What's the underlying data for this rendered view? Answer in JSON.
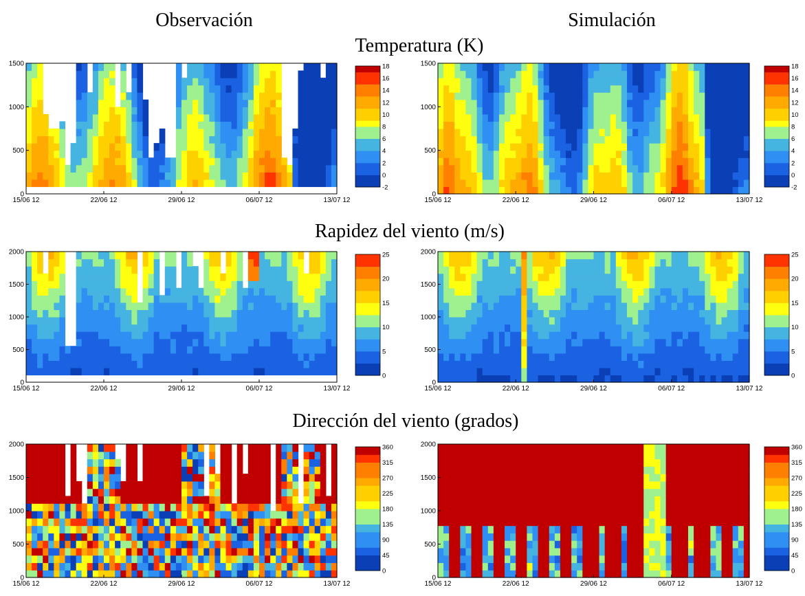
{
  "page": {
    "header_top": "",
    "col_left": "Observación",
    "col_right": "Simulación"
  },
  "rows": [
    {
      "title": "Temperatura (K)"
    },
    {
      "title": "Rapidez del viento (m/s)"
    },
    {
      "title": "Dirección del viento (grados)"
    }
  ],
  "colormap": [
    "#0a3fb5",
    "#1b62e3",
    "#2f8ff2",
    "#45b4e0",
    "#9ff08e",
    "#ffff10",
    "#ffd000",
    "#ffaa00",
    "#ff7f00",
    "#ff3300",
    "#c00000"
  ],
  "chart_data": [
    {
      "type": "heatmap",
      "name": "obs-temperature",
      "row": 0,
      "panel": "left",
      "xlabels": [
        "15/06 12",
        "22/06 12",
        "29/06 12",
        "06/07 12",
        "13/07 12"
      ],
      "xlim": [
        0,
        28
      ],
      "ylim": [
        0,
        1500
      ],
      "yticks": [
        0,
        500,
        1000,
        1500
      ],
      "colorbar_ticks": [
        -2,
        0,
        2,
        4,
        6,
        8,
        10,
        12,
        14,
        16,
        18
      ],
      "clim": [
        -2,
        18
      ],
      "missing": true
    },
    {
      "type": "heatmap",
      "name": "sim-temperature",
      "row": 0,
      "panel": "right",
      "xlabels": [
        "15/06 12",
        "22/06 12",
        "29/06 12",
        "06/07 12",
        "13/07 12"
      ],
      "xlim": [
        0,
        28
      ],
      "ylim": [
        0,
        1500
      ],
      "yticks": [
        0,
        500,
        1000,
        1500
      ],
      "colorbar_ticks": [
        -2,
        0,
        2,
        4,
        6,
        8,
        10,
        12,
        14,
        16,
        18
      ],
      "clim": [
        -2,
        18
      ],
      "missing": false
    },
    {
      "type": "heatmap",
      "name": "obs-wind-speed",
      "row": 1,
      "panel": "left",
      "xlabels": [
        "15/06 12",
        "22/06 12",
        "29/06 12",
        "06/07 12",
        "13/07 12"
      ],
      "xlim": [
        0,
        28
      ],
      "ylim": [
        0,
        2000
      ],
      "yticks": [
        0,
        500,
        1000,
        1500,
        2000
      ],
      "colorbar_ticks": [
        0,
        5,
        10,
        15,
        20,
        25
      ],
      "clim": [
        0,
        25
      ],
      "missing": true
    },
    {
      "type": "heatmap",
      "name": "sim-wind-speed",
      "row": 1,
      "panel": "right",
      "xlabels": [
        "15/06 12",
        "22/06 12",
        "29/06 12",
        "06/07 12",
        "13/07 12"
      ],
      "xlim": [
        0,
        28
      ],
      "ylim": [
        0,
        2000
      ],
      "yticks": [
        0,
        500,
        1000,
        1500,
        2000
      ],
      "colorbar_ticks": [
        0,
        5,
        10,
        15,
        20,
        25
      ],
      "clim": [
        0,
        25
      ],
      "missing": false
    },
    {
      "type": "heatmap",
      "name": "obs-wind-direction",
      "row": 2,
      "panel": "left",
      "xlabels": [
        "15/06 12",
        "22/06 12",
        "29/06 12",
        "06/07 12",
        "13/07 12"
      ],
      "xlim": [
        0,
        28
      ],
      "ylim": [
        0,
        2000
      ],
      "yticks": [
        0,
        500,
        1000,
        1500,
        2000
      ],
      "colorbar_ticks": [
        0,
        45,
        90,
        135,
        180,
        225,
        270,
        315,
        360
      ],
      "clim": [
        0,
        360
      ],
      "missing": true
    },
    {
      "type": "heatmap",
      "name": "sim-wind-direction",
      "row": 2,
      "panel": "right",
      "xlabels": [
        "15/06 12",
        "22/06 12",
        "29/06 12",
        "06/07 12",
        "13/07 12"
      ],
      "xlim": [
        0,
        28
      ],
      "ylim": [
        0,
        2000
      ],
      "yticks": [
        0,
        500,
        1000,
        1500,
        2000
      ],
      "colorbar_ticks": [
        0,
        45,
        90,
        135,
        180,
        225,
        270,
        315,
        360
      ],
      "clim": [
        0,
        360
      ],
      "missing": false
    }
  ]
}
